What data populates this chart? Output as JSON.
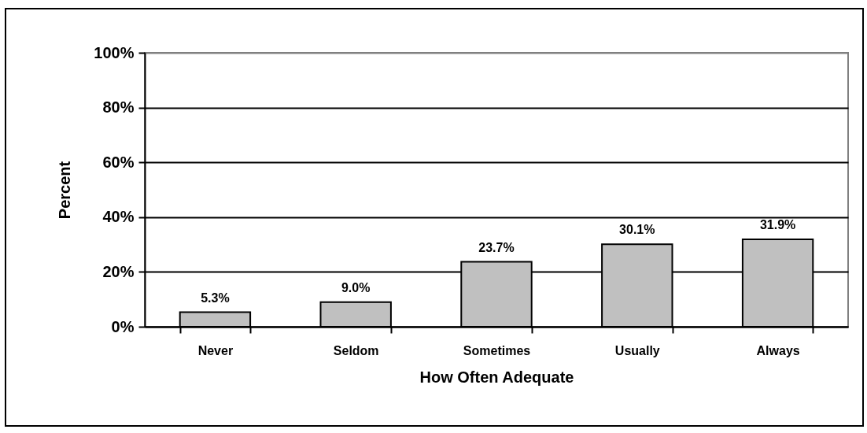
{
  "chart_data": {
    "type": "bar",
    "xlabel": "How Often Adequate",
    "ylabel": "Percent",
    "categories": [
      "Never",
      "Seldom",
      "Sometimes",
      "Usually",
      "Always"
    ],
    "values": [
      5.3,
      9.0,
      23.7,
      30.1,
      31.9
    ],
    "value_labels": [
      "5.3%",
      "9.0%",
      "23.7%",
      "30.1%",
      "31.9%"
    ],
    "color": "#c0c0c0",
    "ylim": [
      0,
      100
    ],
    "yticks": [
      {
        "value": 0,
        "label": "0%"
      },
      {
        "value": 20,
        "label": "20%"
      },
      {
        "value": 40,
        "label": "40%"
      },
      {
        "value": 60,
        "label": "60%"
      },
      {
        "value": 80,
        "label": "80%"
      },
      {
        "value": 100,
        "label": "100%"
      }
    ],
    "grid": "y"
  }
}
